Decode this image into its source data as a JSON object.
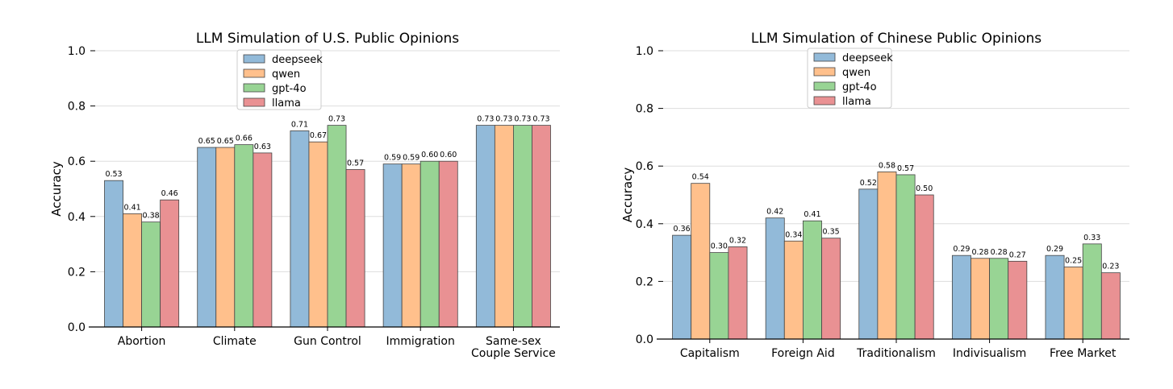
{
  "colors": {
    "deepseek": "#92bad9",
    "qwen": "#ffc08c",
    "gpt-4o": "#98d494",
    "llama": "#e99193",
    "grid": "#dddddd",
    "edge": "#444444"
  },
  "chart_data": [
    {
      "type": "bar",
      "title": "LLM Simulation of U.S. Public Opinions",
      "xlabel": "",
      "ylabel": "Accuracy",
      "ylim": [
        0,
        1.0
      ],
      "yticks": [
        "0.0",
        "0.2",
        "0.4",
        "0.6",
        "0.8",
        "1.0"
      ],
      "grid": true,
      "legend_position": "top-left",
      "categories": [
        [
          "Abortion"
        ],
        [
          "Climate"
        ],
        [
          "Gun Control"
        ],
        [
          "Immigration"
        ],
        [
          "Same-sex",
          "Couple Service"
        ]
      ],
      "series": [
        {
          "name": "deepseek",
          "values": [
            0.53,
            0.65,
            0.71,
            0.59,
            0.73
          ],
          "labels": [
            "0.53",
            "0.65",
            "0.71",
            "0.59",
            "0.73"
          ]
        },
        {
          "name": "qwen",
          "values": [
            0.41,
            0.65,
            0.67,
            0.59,
            0.73
          ],
          "labels": [
            "0.41",
            "0.65",
            "0.67",
            "0.59",
            "0.73"
          ]
        },
        {
          "name": "gpt-4o",
          "values": [
            0.38,
            0.66,
            0.73,
            0.6,
            0.73
          ],
          "labels": [
            "0.38",
            "0.66",
            "0.73",
            "0.60",
            "0.73"
          ]
        },
        {
          "name": "llama",
          "values": [
            0.46,
            0.63,
            0.57,
            0.6,
            0.73
          ],
          "labels": [
            "0.46",
            "0.63",
            "0.57",
            "0.60",
            "0.73"
          ]
        }
      ]
    },
    {
      "type": "bar",
      "title": "LLM Simulation of Chinese Public Opinions",
      "xlabel": "",
      "ylabel": "Accuracy",
      "ylim": [
        0,
        1.0
      ],
      "yticks": [
        "0.0",
        "0.2",
        "0.4",
        "0.6",
        "0.8",
        "1.0"
      ],
      "grid": true,
      "legend_position": "top-left",
      "categories": [
        [
          "Capitalism"
        ],
        [
          "Foreign Aid"
        ],
        [
          "Traditionalism"
        ],
        [
          "Indivisualism"
        ],
        [
          "Free Market"
        ]
      ],
      "series": [
        {
          "name": "deepseek",
          "values": [
            0.36,
            0.42,
            0.52,
            0.29,
            0.29
          ],
          "labels": [
            "0.36",
            "0.42",
            "0.52",
            "0.29",
            "0.29"
          ]
        },
        {
          "name": "qwen",
          "values": [
            0.54,
            0.34,
            0.58,
            0.28,
            0.25
          ],
          "labels": [
            "0.54",
            "0.34",
            "0.58",
            "0.28",
            "0.25"
          ]
        },
        {
          "name": "gpt-4o",
          "values": [
            0.3,
            0.41,
            0.57,
            0.28,
            0.33
          ],
          "labels": [
            "0.30",
            "0.41",
            "0.57",
            "0.28",
            "0.33"
          ]
        },
        {
          "name": "llama",
          "values": [
            0.32,
            0.35,
            0.5,
            0.27,
            0.23
          ],
          "labels": [
            "0.32",
            "0.35",
            "0.50",
            "0.27",
            "0.23"
          ]
        }
      ]
    }
  ]
}
